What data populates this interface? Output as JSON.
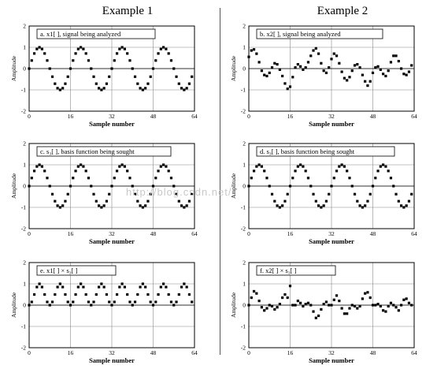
{
  "columns": [
    "Example 1",
    "Example 2"
  ],
  "watermark": "http://blog.csdn.net/",
  "chart_data": [
    {
      "type": "scatter",
      "label": "a.  x1[ ], signal being analyzed",
      "xlabel": "Sample number",
      "ylabel": "Amplitude",
      "xlim": [
        0,
        64
      ],
      "ylim": [
        -2,
        2
      ],
      "xticks": [
        0,
        16,
        32,
        48,
        64
      ],
      "yticks": [
        -2,
        -1,
        0,
        1,
        2
      ],
      "x": [
        0,
        1,
        2,
        3,
        4,
        5,
        6,
        7,
        8,
        9,
        10,
        11,
        12,
        13,
        14,
        15,
        16,
        17,
        18,
        19,
        20,
        21,
        22,
        23,
        24,
        25,
        26,
        27,
        28,
        29,
        30,
        31,
        32,
        33,
        34,
        35,
        36,
        37,
        38,
        39,
        40,
        41,
        42,
        43,
        44,
        45,
        46,
        47,
        48,
        49,
        50,
        51,
        52,
        53,
        54,
        55,
        56,
        57,
        58,
        59,
        60,
        61,
        62,
        63
      ],
      "y": [
        0.0,
        0.38,
        0.71,
        0.92,
        1.0,
        0.92,
        0.71,
        0.38,
        0.0,
        -0.38,
        -0.71,
        -0.92,
        -1.0,
        -0.92,
        -0.71,
        -0.38,
        0.0,
        0.38,
        0.71,
        0.92,
        1.0,
        0.92,
        0.71,
        0.38,
        0.0,
        -0.38,
        -0.71,
        -0.92,
        -1.0,
        -0.92,
        -0.71,
        -0.38,
        0.0,
        0.38,
        0.71,
        0.92,
        1.0,
        0.92,
        0.71,
        0.38,
        0.0,
        -0.38,
        -0.71,
        -0.92,
        -1.0,
        -0.92,
        -0.71,
        -0.38,
        0.0,
        0.38,
        0.71,
        0.92,
        1.0,
        0.92,
        0.71,
        0.38,
        0.0,
        -0.38,
        -0.71,
        -0.92,
        -1.0,
        -0.92,
        -0.71,
        -0.38
      ]
    },
    {
      "type": "scatter",
      "label": "b.  x2[ ], signal being analyzed",
      "xlabel": "Sample number",
      "ylabel": "Amplitude",
      "xlim": [
        0,
        64
      ],
      "ylim": [
        -2,
        2
      ],
      "xticks": [
        0,
        16,
        32,
        48,
        64
      ],
      "yticks": [
        -2,
        -1,
        0,
        1,
        2
      ],
      "x": [
        0,
        1,
        2,
        3,
        4,
        5,
        6,
        7,
        8,
        9,
        10,
        11,
        12,
        13,
        14,
        15,
        16,
        17,
        18,
        19,
        20,
        21,
        22,
        23,
        24,
        25,
        26,
        27,
        28,
        29,
        30,
        31,
        32,
        33,
        34,
        35,
        36,
        37,
        38,
        39,
        40,
        41,
        42,
        43,
        44,
        45,
        46,
        47,
        48,
        49,
        50,
        51,
        52,
        53,
        54,
        55,
        56,
        57,
        58,
        59,
        60,
        61,
        62,
        63
      ],
      "y": [
        0.55,
        0.85,
        0.9,
        0.7,
        0.3,
        -0.1,
        -0.3,
        -0.35,
        -0.2,
        0.05,
        0.25,
        0.2,
        -0.05,
        -0.35,
        -0.7,
        -0.95,
        -0.85,
        -0.4,
        0.05,
        0.2,
        0.1,
        -0.05,
        0.05,
        0.3,
        0.6,
        0.85,
        0.95,
        0.7,
        0.25,
        -0.1,
        -0.2,
        0.05,
        0.45,
        0.7,
        0.6,
        0.25,
        -0.15,
        -0.45,
        -0.55,
        -0.4,
        -0.1,
        0.15,
        0.2,
        0.05,
        -0.3,
        -0.6,
        -0.8,
        -0.6,
        -0.2,
        0.05,
        0.1,
        -0.05,
        -0.25,
        -0.35,
        -0.1,
        0.3,
        0.6,
        0.6,
        0.35,
        0.0,
        -0.25,
        -0.3,
        -0.15,
        0.15
      ]
    },
    {
      "type": "scatter",
      "label": "c.  s₃[ ], basis function being sought",
      "xlabel": "Sample number",
      "ylabel": "Amplitude",
      "xlim": [
        0,
        64
      ],
      "ylim": [
        -2,
        2
      ],
      "xticks": [
        0,
        16,
        32,
        48,
        64
      ],
      "yticks": [
        -2,
        -1,
        0,
        1,
        2
      ],
      "x": [
        0,
        1,
        2,
        3,
        4,
        5,
        6,
        7,
        8,
        9,
        10,
        11,
        12,
        13,
        14,
        15,
        16,
        17,
        18,
        19,
        20,
        21,
        22,
        23,
        24,
        25,
        26,
        27,
        28,
        29,
        30,
        31,
        32,
        33,
        34,
        35,
        36,
        37,
        38,
        39,
        40,
        41,
        42,
        43,
        44,
        45,
        46,
        47,
        48,
        49,
        50,
        51,
        52,
        53,
        54,
        55,
        56,
        57,
        58,
        59,
        60,
        61,
        62,
        63
      ],
      "y": [
        0.0,
        0.38,
        0.71,
        0.92,
        1.0,
        0.92,
        0.71,
        0.38,
        0.0,
        -0.38,
        -0.71,
        -0.92,
        -1.0,
        -0.92,
        -0.71,
        -0.38,
        0.0,
        0.38,
        0.71,
        0.92,
        1.0,
        0.92,
        0.71,
        0.38,
        0.0,
        -0.38,
        -0.71,
        -0.92,
        -1.0,
        -0.92,
        -0.71,
        -0.38,
        0.0,
        0.38,
        0.71,
        0.92,
        1.0,
        0.92,
        0.71,
        0.38,
        0.0,
        -0.38,
        -0.71,
        -0.92,
        -1.0,
        -0.92,
        -0.71,
        -0.38,
        0.0,
        0.38,
        0.71,
        0.92,
        1.0,
        0.92,
        0.71,
        0.38,
        0.0,
        -0.38,
        -0.71,
        -0.92,
        -1.0,
        -0.92,
        -0.71,
        -0.38
      ]
    },
    {
      "type": "scatter",
      "label": "d.  s₃[ ], basis function being sought",
      "xlabel": "Sample number",
      "ylabel": "Amplitude",
      "xlim": [
        0,
        64
      ],
      "ylim": [
        -2,
        2
      ],
      "xticks": [
        0,
        16,
        32,
        48,
        64
      ],
      "yticks": [
        -2,
        -1,
        0,
        1,
        2
      ],
      "x": [
        0,
        1,
        2,
        3,
        4,
        5,
        6,
        7,
        8,
        9,
        10,
        11,
        12,
        13,
        14,
        15,
        16,
        17,
        18,
        19,
        20,
        21,
        22,
        23,
        24,
        25,
        26,
        27,
        28,
        29,
        30,
        31,
        32,
        33,
        34,
        35,
        36,
        37,
        38,
        39,
        40,
        41,
        42,
        43,
        44,
        45,
        46,
        47,
        48,
        49,
        50,
        51,
        52,
        53,
        54,
        55,
        56,
        57,
        58,
        59,
        60,
        61,
        62,
        63
      ],
      "y": [
        0.0,
        0.38,
        0.71,
        0.92,
        1.0,
        0.92,
        0.71,
        0.38,
        0.0,
        -0.38,
        -0.71,
        -0.92,
        -1.0,
        -0.92,
        -0.71,
        -0.38,
        0.0,
        0.38,
        0.71,
        0.92,
        1.0,
        0.92,
        0.71,
        0.38,
        0.0,
        -0.38,
        -0.71,
        -0.92,
        -1.0,
        -0.92,
        -0.71,
        -0.38,
        0.0,
        0.38,
        0.71,
        0.92,
        1.0,
        0.92,
        0.71,
        0.38,
        0.0,
        -0.38,
        -0.71,
        -0.92,
        -1.0,
        -0.92,
        -0.71,
        -0.38,
        0.0,
        0.38,
        0.71,
        0.92,
        1.0,
        0.92,
        0.71,
        0.38,
        0.0,
        -0.38,
        -0.71,
        -0.92,
        -1.0,
        -0.92,
        -0.71,
        -0.38
      ]
    },
    {
      "type": "scatter",
      "label": "e.  x1[ ] × s₃[ ]",
      "xlabel": "Sample number",
      "ylabel": "Amplitude",
      "xlim": [
        0,
        64
      ],
      "ylim": [
        -2,
        2
      ],
      "xticks": [
        0,
        16,
        32,
        48,
        64
      ],
      "yticks": [
        -2,
        -1,
        0,
        1,
        2
      ],
      "x": [
        0,
        1,
        2,
        3,
        4,
        5,
        6,
        7,
        8,
        9,
        10,
        11,
        12,
        13,
        14,
        15,
        16,
        17,
        18,
        19,
        20,
        21,
        22,
        23,
        24,
        25,
        26,
        27,
        28,
        29,
        30,
        31,
        32,
        33,
        34,
        35,
        36,
        37,
        38,
        39,
        40,
        41,
        42,
        43,
        44,
        45,
        46,
        47,
        48,
        49,
        50,
        51,
        52,
        53,
        54,
        55,
        56,
        57,
        58,
        59,
        60,
        61,
        62,
        63
      ],
      "y": [
        0.0,
        0.15,
        0.5,
        0.85,
        1.0,
        0.85,
        0.5,
        0.15,
        0.0,
        0.15,
        0.5,
        0.85,
        1.0,
        0.85,
        0.5,
        0.15,
        0.0,
        0.15,
        0.5,
        0.85,
        1.0,
        0.85,
        0.5,
        0.15,
        0.0,
        0.15,
        0.5,
        0.85,
        1.0,
        0.85,
        0.5,
        0.15,
        0.0,
        0.15,
        0.5,
        0.85,
        1.0,
        0.85,
        0.5,
        0.15,
        0.0,
        0.15,
        0.5,
        0.85,
        1.0,
        0.85,
        0.5,
        0.15,
        0.0,
        0.15,
        0.5,
        0.85,
        1.0,
        0.85,
        0.5,
        0.15,
        0.0,
        0.15,
        0.5,
        0.85,
        1.0,
        0.85,
        0.5,
        0.15
      ]
    },
    {
      "type": "scatter",
      "label": "f.  x2[ ] × s₃[ ]",
      "xlabel": "Sample number",
      "ylabel": "Amplitude",
      "xlim": [
        0,
        64
      ],
      "ylim": [
        -2,
        2
      ],
      "xticks": [
        0,
        16,
        32,
        48,
        64
      ],
      "yticks": [
        -2,
        -1,
        0,
        1,
        2
      ],
      "x": [
        0,
        1,
        2,
        3,
        4,
        5,
        6,
        7,
        8,
        9,
        10,
        11,
        12,
        13,
        14,
        15,
        16,
        17,
        18,
        19,
        20,
        21,
        22,
        23,
        24,
        25,
        26,
        27,
        28,
        29,
        30,
        31,
        32,
        33,
        34,
        35,
        36,
        37,
        38,
        39,
        40,
        41,
        42,
        43,
        44,
        45,
        46,
        47,
        48,
        49,
        50,
        51,
        52,
        53,
        54,
        55,
        56,
        57,
        58,
        59,
        60,
        61,
        62,
        63
      ],
      "y": [
        0.0,
        0.35,
        0.65,
        0.55,
        0.2,
        -0.1,
        -0.25,
        -0.15,
        0.0,
        -0.05,
        -0.2,
        -0.1,
        0.05,
        0.35,
        0.5,
        0.35,
        0.9,
        0.0,
        0.0,
        0.2,
        0.1,
        -0.05,
        0.05,
        0.1,
        0.0,
        -0.3,
        -0.6,
        -0.5,
        -0.2,
        0.05,
        0.15,
        0.0,
        0.0,
        0.25,
        0.45,
        0.2,
        -0.15,
        -0.4,
        -0.4,
        -0.15,
        0.0,
        -0.05,
        -0.15,
        -0.05,
        0.3,
        0.55,
        0.6,
        0.35,
        0.0,
        0.0,
        0.05,
        -0.05,
        -0.25,
        -0.3,
        -0.05,
        0.1,
        0.0,
        -0.1,
        -0.25,
        0.0,
        0.25,
        0.3,
        0.1,
        0.0
      ]
    }
  ]
}
